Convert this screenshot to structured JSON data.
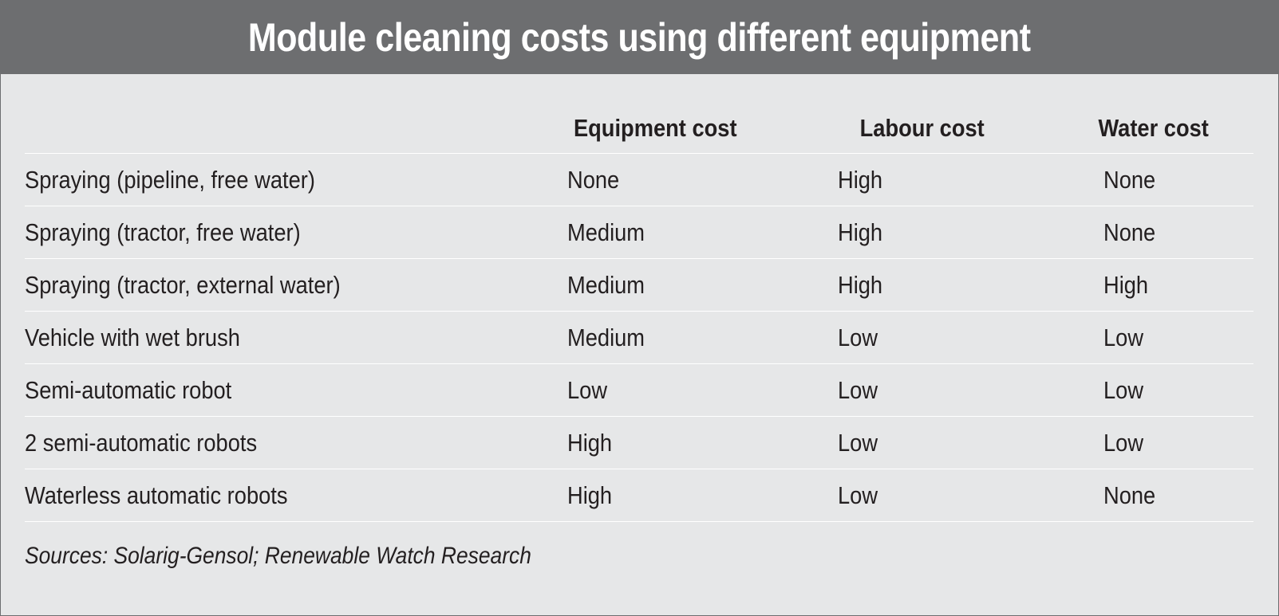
{
  "title": "Module cleaning costs using different equipment",
  "table": {
    "headers": [
      "",
      "Equipment cost",
      "Labour cost",
      "Water cost"
    ],
    "rows": [
      {
        "label": "Spraying (pipeline, free water)",
        "equipment": "None",
        "labour": "High",
        "water": "None"
      },
      {
        "label": "Spraying (tractor, free water)",
        "equipment": "Medium",
        "labour": "High",
        "water": "None"
      },
      {
        "label": "Spraying (tractor, external water)",
        "equipment": "Medium",
        "labour": "High",
        "water": "High"
      },
      {
        "label": "Vehicle with wet brush",
        "equipment": "Medium",
        "labour": "Low",
        "water": "Low"
      },
      {
        "label": "Semi-automatic robot",
        "equipment": "Low",
        "labour": "Low",
        "water": "Low"
      },
      {
        "label": "2 semi-automatic robots",
        "equipment": "High",
        "labour": "Low",
        "water": "Low"
      },
      {
        "label": "Waterless automatic robots",
        "equipment": "High",
        "labour": "Low",
        "water": "None"
      }
    ]
  },
  "source": "Sources: Solarig-Gensol; Renewable Watch Research",
  "colors": {
    "title_bar": "#6d6e70",
    "background": "#e6e7e8",
    "title_text": "#ffffff",
    "body_text": "#231f20",
    "row_divider": "#ffffff"
  }
}
